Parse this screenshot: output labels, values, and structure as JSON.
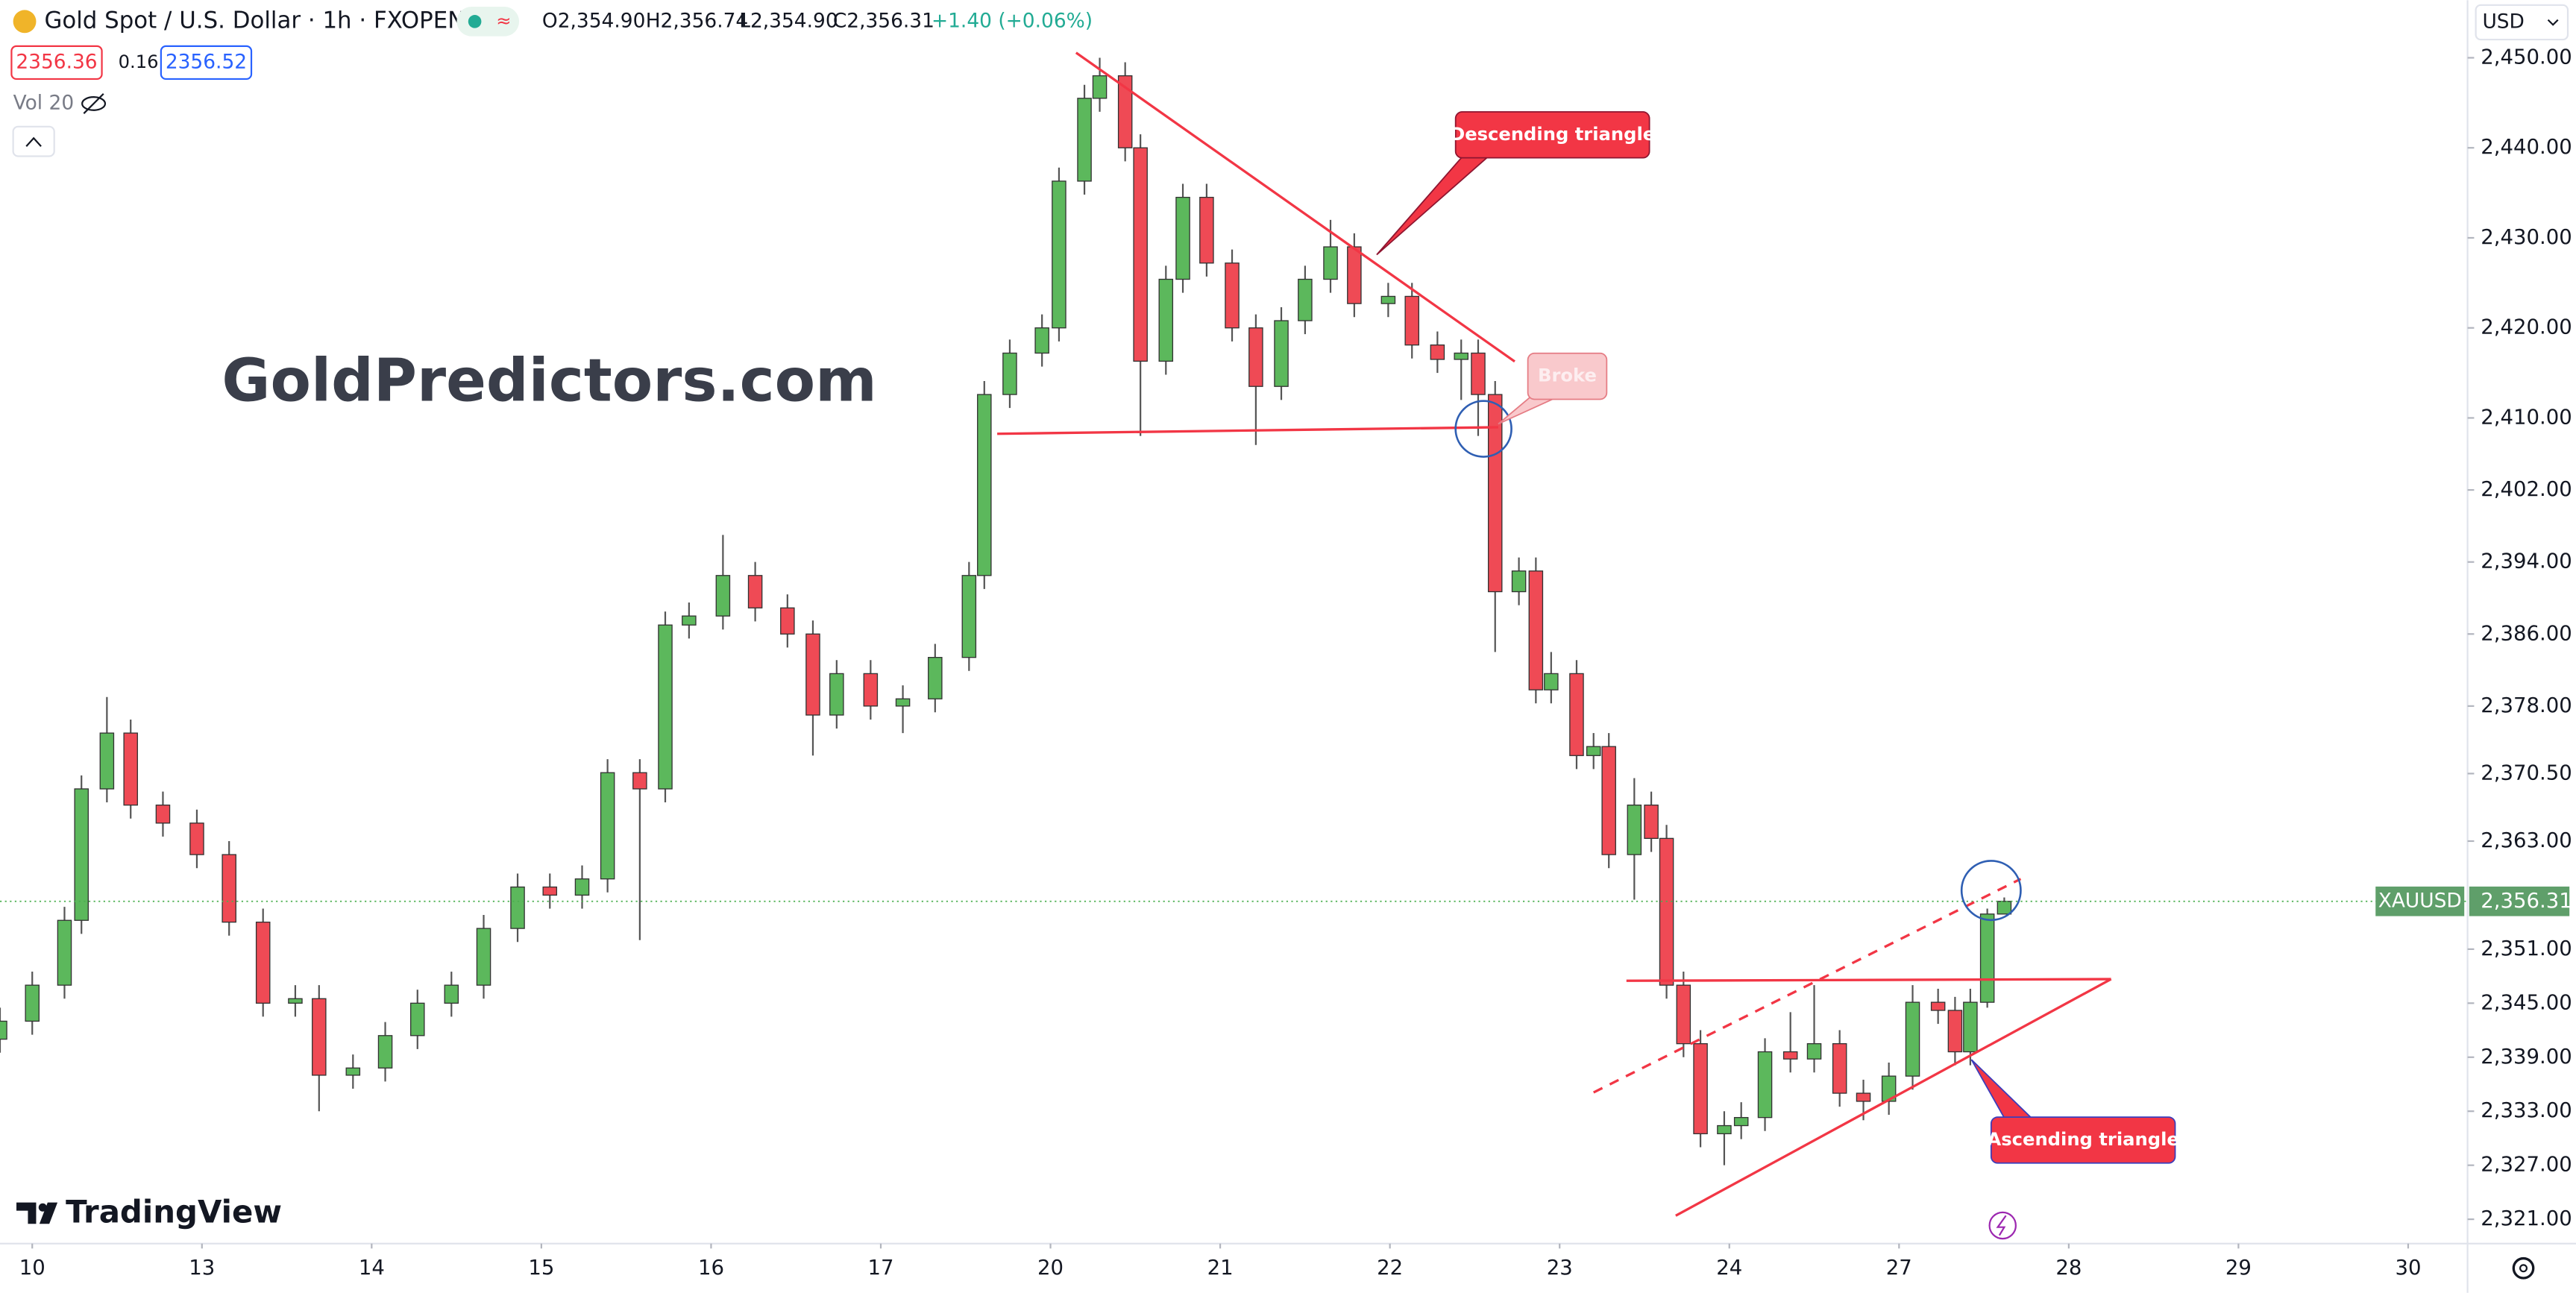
{
  "chart_data": {
    "type": "candlestick",
    "title": "Gold Spot / U.S. Dollar · 1h · FXOPEN",
    "ohlc_header": [
      "O2,354.90",
      "H2,356.74",
      "L2,354.90",
      "C2,356.31",
      "+1.40 (+0.06%)"
    ],
    "bid": "2356.36",
    "spread": "0.16",
    "ask": "2356.52",
    "volume_label": "Vol 20",
    "watermark": "GoldPredictors.com",
    "brand": "TradingView",
    "currency": "USD",
    "symbol": "XAUUSD",
    "last_price_label": "2,356.31",
    "annotations": [
      "Descending triangle",
      "Broke",
      "Ascending triangle"
    ],
    "up_color": "#5cb85c",
    "down_color": "#ef4a55",
    "wick_color": "#555555",
    "grid": false,
    "xlim": [
      -0.19,
      14.35
    ],
    "ylim": [
      2318.3,
      2456.4
    ],
    "xticks": [
      {
        "value": 0,
        "label": "10"
      },
      {
        "value": 1,
        "label": "13"
      },
      {
        "value": 2,
        "label": "14"
      },
      {
        "value": 3,
        "label": "15"
      },
      {
        "value": 4,
        "label": "16"
      },
      {
        "value": 5,
        "label": "17"
      },
      {
        "value": 6,
        "label": "20"
      },
      {
        "value": 7,
        "label": "21"
      },
      {
        "value": 8,
        "label": "22"
      },
      {
        "value": 9,
        "label": "23"
      },
      {
        "value": 10,
        "label": "24"
      },
      {
        "value": 11,
        "label": "27"
      },
      {
        "value": 12,
        "label": "28"
      },
      {
        "value": 13,
        "label": "29"
      },
      {
        "value": 14,
        "label": "30"
      }
    ],
    "yticks": [
      {
        "value": 2450,
        "label": "2,450.00"
      },
      {
        "value": 2440,
        "label": "2,440.00"
      },
      {
        "value": 2430,
        "label": "2,430.00"
      },
      {
        "value": 2420,
        "label": "2,420.00"
      },
      {
        "value": 2410,
        "label": "2,410.00"
      },
      {
        "value": 2402,
        "label": "2,402.00"
      },
      {
        "value": 2394,
        "label": "2,394.00"
      },
      {
        "value": 2386,
        "label": "2,386.00"
      },
      {
        "value": 2378,
        "label": "2,378.00"
      },
      {
        "value": 2370.5,
        "label": "2,370.50"
      },
      {
        "value": 2363,
        "label": "2,363.00"
      },
      {
        "value": 2351,
        "label": "2,351.00"
      },
      {
        "value": 2345,
        "label": "2,345.00"
      },
      {
        "value": 2339,
        "label": "2,339.00"
      },
      {
        "value": 2333,
        "label": "2,333.00"
      },
      {
        "value": 2327,
        "label": "2,327.00"
      },
      {
        "value": 2321,
        "label": "2,321.00"
      }
    ],
    "series": [
      {
        "name": "XAUUSD",
        "x": [
          -0.19,
          0,
          0.19,
          0.29,
          0.44,
          0.58,
          0.77,
          0.97,
          1.16,
          1.36,
          1.55,
          1.69,
          1.89,
          2.08,
          2.27,
          2.47,
          2.66,
          2.86,
          3.05,
          3.24,
          3.39,
          3.58,
          3.73,
          3.87,
          4.07,
          4.26,
          4.45,
          4.6,
          4.74,
          4.94,
          5.13,
          5.32,
          5.52,
          5.61,
          5.76,
          5.95,
          6.05,
          6.2,
          6.29,
          6.44,
          6.53,
          6.68,
          6.78,
          6.92,
          7.07,
          7.21,
          7.36,
          7.5,
          7.65,
          7.79,
          7.99,
          8.13,
          8.28,
          8.42,
          8.52,
          8.62,
          8.76,
          8.86,
          8.95,
          9.1,
          9.2,
          9.29,
          9.44,
          9.54,
          9.63,
          9.73,
          9.83,
          9.97,
          10.07,
          10.21,
          10.36,
          10.5,
          10.65,
          10.79,
          10.94,
          11.08,
          11.23,
          11.33,
          11.42,
          11.52,
          11.62
        ],
        "open": [
          2341,
          2343,
          2347,
          2354.2,
          2368.8,
          2375,
          2367,
          2365,
          2361.5,
          2354,
          2345,
          2345.5,
          2337,
          2337.8,
          2341.4,
          2345,
          2347,
          2353.3,
          2357.9,
          2357,
          2358.8,
          2370.6,
          2368.8,
          2387,
          2388,
          2392.5,
          2388.9,
          2386,
          2377,
          2381.6,
          2378,
          2378.8,
          2383.4,
          2392.5,
          2412.6,
          2417.2,
          2420,
          2436.3,
          2445.5,
          2448,
          2440,
          2416.3,
          2425.4,
          2434.5,
          2427.2,
          2420,
          2413.5,
          2420.8,
          2425.4,
          2429,
          2422.7,
          2423.5,
          2418.1,
          2416.5,
          2417.2,
          2412.6,
          2390.7,
          2393,
          2379.8,
          2381.6,
          2372.5,
          2373.5,
          2361.5,
          2367,
          2363.3,
          2347,
          2340.5,
          2330.5,
          2331.4,
          2332.3,
          2339.6,
          2338.8,
          2340.5,
          2335,
          2334.1,
          2336.9,
          2345.1,
          2344.2,
          2339.6,
          2345.1,
          2354.9
        ],
        "high": [
          2344.5,
          2348.5,
          2355.7,
          2370.3,
          2379,
          2376.5,
          2368.5,
          2366.5,
          2363,
          2355.5,
          2347,
          2347,
          2339.3,
          2342.9,
          2346.5,
          2348.5,
          2354.8,
          2359.4,
          2359.4,
          2360.3,
          2372.1,
          2372.1,
          2388.5,
          2389.5,
          2397,
          2394,
          2390.4,
          2387.5,
          2383.1,
          2383.1,
          2380.3,
          2384.9,
          2394,
          2414.1,
          2418.7,
          2421.5,
          2437.8,
          2447,
          2450,
          2449.5,
          2441.5,
          2426.9,
          2436,
          2436,
          2428.7,
          2421.5,
          2422.3,
          2426.9,
          2432,
          2430.5,
          2425,
          2425,
          2419.6,
          2418.7,
          2418.7,
          2414.1,
          2394.5,
          2394.5,
          2384,
          2383.1,
          2375,
          2375,
          2370,
          2368.5,
          2364.8,
          2348.5,
          2342,
          2333,
          2334,
          2341.1,
          2344,
          2347,
          2342,
          2336.5,
          2338.4,
          2347,
          2346.6,
          2345.7,
          2346.6,
          2355.5,
          2356.74
        ],
        "low": [
          2339.5,
          2341.5,
          2345.5,
          2352.7,
          2367.3,
          2365.5,
          2363.5,
          2360,
          2352.5,
          2343.5,
          2343.5,
          2333,
          2335.5,
          2336.3,
          2339.9,
          2343.5,
          2345.5,
          2351.8,
          2355.5,
          2355.5,
          2357.3,
          2352,
          2367.3,
          2385.5,
          2386.5,
          2387.4,
          2384.5,
          2372.5,
          2375.5,
          2376.5,
          2375,
          2377.3,
          2381.9,
          2391,
          2411.1,
          2415.7,
          2418.5,
          2434.8,
          2444,
          2438.5,
          2408,
          2414.8,
          2423.9,
          2425.7,
          2418.5,
          2407,
          2412,
          2419.3,
          2423.9,
          2421.2,
          2421.2,
          2416.6,
          2415,
          2412,
          2408,
          2384,
          2389.2,
          2378.3,
          2378.3,
          2371,
          2371,
          2360,
          2356.5,
          2361.8,
          2345.5,
          2339,
          2329,
          2327,
          2329.9,
          2330.8,
          2337.3,
          2337.3,
          2333.5,
          2332,
          2332.6,
          2335.4,
          2342.7,
          2338.1,
          2338.1,
          2344.5,
          2354.9
        ],
        "close": [
          2343,
          2347,
          2354.2,
          2368.8,
          2375,
          2367,
          2365,
          2361.5,
          2354,
          2345,
          2345.5,
          2337,
          2337.8,
          2341.4,
          2345,
          2347,
          2353.3,
          2357.9,
          2357,
          2358.8,
          2370.6,
          2368.8,
          2387,
          2388,
          2392.5,
          2388.9,
          2386,
          2377,
          2381.6,
          2378,
          2378.8,
          2383.4,
          2392.5,
          2412.6,
          2417.2,
          2420,
          2436.3,
          2445.5,
          2448,
          2440,
          2416.3,
          2425.4,
          2434.5,
          2427.2,
          2420,
          2413.5,
          2420.8,
          2425.4,
          2429,
          2422.7,
          2423.5,
          2418.1,
          2416.5,
          2417.2,
          2412.6,
          2390.7,
          2393,
          2379.8,
          2381.6,
          2372.5,
          2373.5,
          2361.5,
          2367,
          2363.3,
          2347,
          2340.5,
          2330.5,
          2331.4,
          2332.3,
          2339.6,
          2338.8,
          2340.5,
          2335,
          2334.1,
          2336.9,
          2345.1,
          2344.2,
          2339.6,
          2345.1,
          2354.9,
          2356.31
        ]
      }
    ]
  }
}
